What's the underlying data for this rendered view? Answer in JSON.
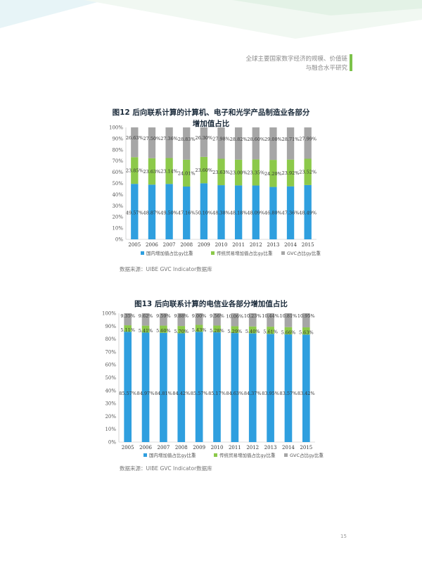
{
  "header": {
    "line1": "全球主要国家数字经济的规模、价值链",
    "line2": "与融合水平研究"
  },
  "figures": [
    {
      "title_line1": "图12  后向联系计算的计算机、电子和光学产品制造业各部分",
      "title_line2": "增加值占比",
      "source": "数据来源：UIBE GVC Indicator数据库"
    },
    {
      "title_line1": "图13  后向联系计算的电信业各部分增加值占比",
      "source": "数据来源：UIBE GVC Indicator数据库"
    }
  ],
  "colors": {
    "domestic": "#2f9fdf",
    "traditional": "#8cc94a",
    "gvc": "#a6a6a6"
  },
  "chart_data": [
    {
      "type": "bar",
      "stacked": true,
      "categories": [
        "2005",
        "2006",
        "2007",
        "2008",
        "2009",
        "2010",
        "2011",
        "2012",
        "2013",
        "2014",
        "2015"
      ],
      "yticks": [
        "0%",
        "10%",
        "20%",
        "30%",
        "40%",
        "50%",
        "60%",
        "70%",
        "80%",
        "90%",
        "100%"
      ],
      "ylim": [
        0,
        100
      ],
      "legend_position": "bottom",
      "series": [
        {
          "name": "国内增加值占比gy比重",
          "values": [
            49.57,
            48.87,
            49.5,
            47.16,
            50.1,
            48.38,
            48.18,
            48.09,
            46.8,
            47.36,
            48.49
          ],
          "labels": [
            "49.57%",
            "48.87%",
            "49.50%",
            "47.16%",
            "50.10%",
            "48.38%",
            "48.18%",
            "48.09%",
            "46.80%",
            "47.36%",
            "48.49%"
          ]
        },
        {
          "name": "传统贸易增加值占比gy比重",
          "values": [
            23.85,
            23.63,
            23.14,
            24.01,
            23.6,
            23.63,
            23.0,
            23.35,
            24.2,
            23.92,
            23.52
          ],
          "labels": [
            "23.85%",
            "23.63%",
            "23.14%",
            "24.01%",
            "23.60%",
            "23.63%",
            "23.00%",
            "23.35%",
            "24.20%",
            "23.92%",
            "23.52%"
          ]
        },
        {
          "name": "GVC占比gy比重",
          "values": [
            26.63,
            27.5,
            27.36,
            28.83,
            26.3,
            27.98,
            28.82,
            28.6,
            29.0,
            28.71,
            27.99
          ],
          "labels": [
            "26.63%",
            "27.50%",
            "27.36%",
            "28.83%",
            "26.30%",
            "27.98%",
            "28.82%",
            "28.60%",
            "29.00%",
            "28.71%",
            "27.99%"
          ]
        }
      ]
    },
    {
      "type": "bar",
      "stacked": true,
      "categories": [
        "2005",
        "2006",
        "2007",
        "2008",
        "2009",
        "2010",
        "2011",
        "2012",
        "2013",
        "2014",
        "2015"
      ],
      "yticks": [
        "0%",
        "10%",
        "20%",
        "30%",
        "40%",
        "50%",
        "60%",
        "70%",
        "80%",
        "90%",
        "100%"
      ],
      "ylim": [
        0,
        100
      ],
      "legend_position": "bottom",
      "series": [
        {
          "name": "国内增加值占比gy比重",
          "values": [
            85.57,
            84.97,
            84.81,
            84.42,
            85.57,
            85.17,
            84.63,
            84.37,
            83.95,
            83.57,
            83.42
          ],
          "labels": [
            "85.57%",
            "84.97%",
            "84.81%",
            "84.42%",
            "85.57%",
            "85.17%",
            "84.63%",
            "84.37%",
            "83.95%",
            "83.57%",
            "83.42%"
          ]
        },
        {
          "name": "传统贸易增加值占比gy比重",
          "values": [
            5.11,
            5.41,
            5.6,
            5.7,
            5.43,
            5.28,
            5.29,
            5.4,
            5.61,
            5.66,
            5.63
          ],
          "labels": [
            "5.11%",
            "5.41%",
            "5.60%",
            "5.70%",
            "5.43%",
            "5.28%",
            "5.29%",
            "5.40%",
            "5.61%",
            "5.66%",
            "5.63%"
          ]
        },
        {
          "name": "GVC占比gy比重",
          "values": [
            9.35,
            9.62,
            9.59,
            9.88,
            9.0,
            9.56,
            10.06,
            10.23,
            10.44,
            10.81,
            10.95
          ],
          "labels": [
            "9.35%",
            "9.62%",
            "9.59%",
            "9.88%",
            "9.00%",
            "9.56%",
            "10.06%",
            "10.23%",
            "10.44%",
            "10.81%",
            "10.95%"
          ]
        }
      ]
    }
  ],
  "page_number": "15"
}
